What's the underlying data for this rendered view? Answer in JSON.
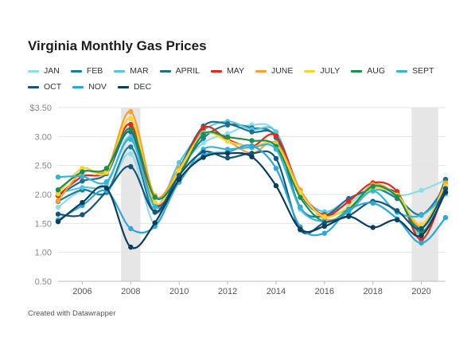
{
  "credit": "Created with Datawrapper",
  "chart_data": {
    "type": "line",
    "title": "Virginia Monthly Gas Prices",
    "xlabel": "",
    "ylabel": "",
    "xlim": [
      2005,
      2021
    ],
    "ylim": [
      0.5,
      3.5
    ],
    "x_ticks": [
      2006,
      2008,
      2010,
      2012,
      2014,
      2016,
      2018,
      2020
    ],
    "x_tick_labels": [
      "2006",
      "2008",
      "2010",
      "2012",
      "2014",
      "2016",
      "2018",
      "2020"
    ],
    "y_ticks": [
      0.5,
      1.0,
      1.5,
      2.0,
      2.5,
      3.0,
      3.5
    ],
    "y_tick_labels": [
      "0.50",
      "1.00",
      "1.50",
      "2.00",
      "2.50",
      "3.00",
      "$3.50"
    ],
    "grid": true,
    "legend_position": "top",
    "highlight_ranges": [
      [
        2007.6,
        2008.4
      ],
      [
        2019.6,
        2020.7
      ]
    ],
    "x": [
      2005,
      2006,
      2007,
      2008,
      2009,
      2010,
      2011,
      2012,
      2013,
      2014,
      2015,
      2016,
      2017,
      2018,
      2019,
      2020,
      2021
    ],
    "series": [
      {
        "name": "JAN",
        "color": "#8fdde8",
        "values": [
          1.78,
          2.07,
          2.02,
          2.7,
          1.49,
          2.41,
          2.89,
          3.05,
          3.2,
          3.05,
          1.74,
          1.69,
          1.84,
          2.11,
          1.98,
          2.07,
          2.25
        ]
      },
      {
        "name": "FEB",
        "color": "#1a7b9c",
        "values": [
          1.88,
          2.08,
          2.04,
          2.82,
          1.69,
          2.38,
          2.97,
          3.2,
          3.15,
          2.98,
          1.78,
          1.62,
          1.76,
          2.09,
          1.93,
          1.65,
          2.14
        ]
      },
      {
        "name": "MAR",
        "color": "#58c7de",
        "values": [
          2.02,
          2.12,
          2.18,
          2.99,
          1.81,
          2.55,
          3.1,
          3.26,
          3.12,
          3.08,
          2.05,
          1.7,
          1.92,
          2.08,
          1.98,
          1.31,
          2.26
        ]
      },
      {
        "name": "APRIL",
        "color": "#1f6e8e",
        "values": [
          1.98,
          2.23,
          2.36,
          3.08,
          1.79,
          2.45,
          3.18,
          3.22,
          3.08,
          3.01,
          2.01,
          1.65,
          1.93,
          2.08,
          2.02,
          1.41,
          2.26
        ]
      },
      {
        "name": "MAY",
        "color": "#e3291b",
        "values": [
          1.98,
          2.31,
          2.4,
          3.21,
          1.84,
          2.39,
          3.15,
          2.95,
          2.83,
          3.01,
          2.07,
          1.64,
          1.88,
          2.2,
          2.05,
          1.22,
          2.12
        ]
      },
      {
        "name": "JUNE",
        "color": "#f6a233",
        "values": [
          1.89,
          2.39,
          2.43,
          3.43,
          1.98,
          2.45,
          3.05,
          2.92,
          2.71,
          2.89,
          2.08,
          1.58,
          1.7,
          2.17,
          1.97,
          1.45,
          2.2
        ]
      },
      {
        "name": "JULY",
        "color": "#f6d53a",
        "values": [
          2.01,
          2.45,
          2.38,
          3.31,
          1.86,
          2.41,
          3.05,
          2.92,
          2.82,
          2.86,
          2.03,
          1.62,
          1.78,
          2.09,
          1.99,
          1.48,
          2.15
        ]
      },
      {
        "name": "AUG",
        "color": "#1e8e4a",
        "values": [
          2.08,
          2.39,
          2.45,
          3.13,
          1.95,
          2.33,
          3.04,
          2.99,
          2.93,
          2.83,
          1.95,
          1.53,
          1.74,
          2.14,
          1.96,
          1.35,
          2.03
        ]
      },
      {
        "name": "SEPT",
        "color": "#38b4d2",
        "values": [
          2.3,
          2.31,
          2.22,
          2.95,
          1.79,
          2.21,
          2.78,
          2.78,
          2.81,
          2.78,
          1.77,
          1.53,
          1.7,
          2.06,
          1.69,
          1.64,
          2.01
        ]
      },
      {
        "name": "OCT",
        "color": "#14557a",
        "values": [
          1.66,
          1.65,
          2.05,
          2.48,
          1.7,
          2.33,
          2.73,
          2.63,
          2.71,
          2.62,
          1.39,
          1.51,
          1.63,
          1.88,
          1.72,
          1.41,
          2.1
        ]
      },
      {
        "name": "NOV",
        "color": "#2ea6d6",
        "values": [
          1.56,
          1.81,
          2.06,
          1.41,
          1.45,
          2.23,
          2.67,
          2.73,
          2.84,
          2.45,
          1.44,
          1.33,
          1.73,
          1.85,
          1.58,
          1.16,
          1.6
        ]
      },
      {
        "name": "DEC",
        "color": "#0b3d5c",
        "values": [
          1.53,
          1.86,
          2.11,
          1.09,
          1.51,
          2.26,
          2.64,
          2.71,
          2.65,
          2.15,
          1.4,
          1.45,
          1.62,
          1.43,
          1.56,
          1.29,
          2.04
        ]
      }
    ]
  }
}
